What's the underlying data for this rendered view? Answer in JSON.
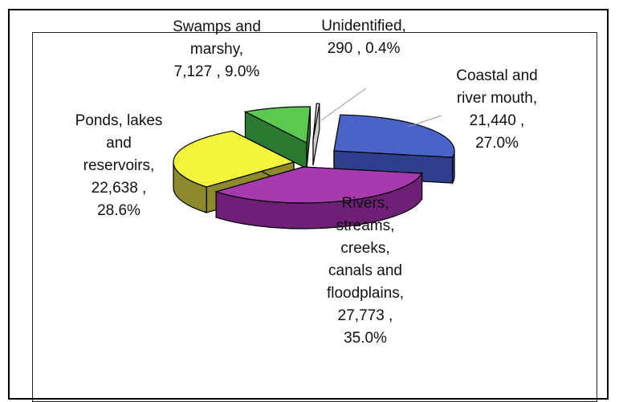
{
  "chart_data": {
    "type": "pie",
    "title": "",
    "slices": [
      {
        "category": "Coastal and river mouth",
        "value": 21440,
        "value_label": "21,440",
        "percent": "27.0%",
        "color": "#4a63c8",
        "side": "#2e3f8e",
        "label_lines": [
          "Coastal and",
          "river mouth,",
          "21,440 ,",
          "27.0%"
        ]
      },
      {
        "category": "Rivers, streams, creeks, canals and floodplains",
        "value": 27773,
        "value_label": "27,773",
        "percent": "35.0%",
        "color": "#a83ab0",
        "side": "#6e1f76",
        "label_lines": [
          "Rivers,",
          "streams,",
          "creeks,",
          "canals and",
          "floodplains,",
          "27,773 ,",
          "35.0%"
        ]
      },
      {
        "category": "Ponds, lakes and reservoirs",
        "value": 22638,
        "value_label": "22,638",
        "percent": "28.6%",
        "color": "#f4f43a",
        "side": "#8c8a2c",
        "label_lines": [
          "Ponds, lakes",
          "and",
          "reservoirs,",
          "22,638 ,",
          "28.6%"
        ]
      },
      {
        "category": "Swamps and marshy",
        "value": 7127,
        "value_label": "7,127",
        "percent": "9.0%",
        "color": "#5cc84f",
        "side": "#2a7a32",
        "label_lines": [
          "Swamps and",
          "marshy,",
          "7,127 , 9.0%"
        ]
      },
      {
        "category": "Unidentified",
        "value": 290,
        "value_label": "290",
        "percent": "0.4%",
        "color": "#ffffff",
        "side": "#cccccc",
        "label_lines": [
          "Unidentified,",
          "290 , 0.4%"
        ]
      }
    ],
    "legend": "none",
    "exploded": true,
    "style": "3d"
  }
}
